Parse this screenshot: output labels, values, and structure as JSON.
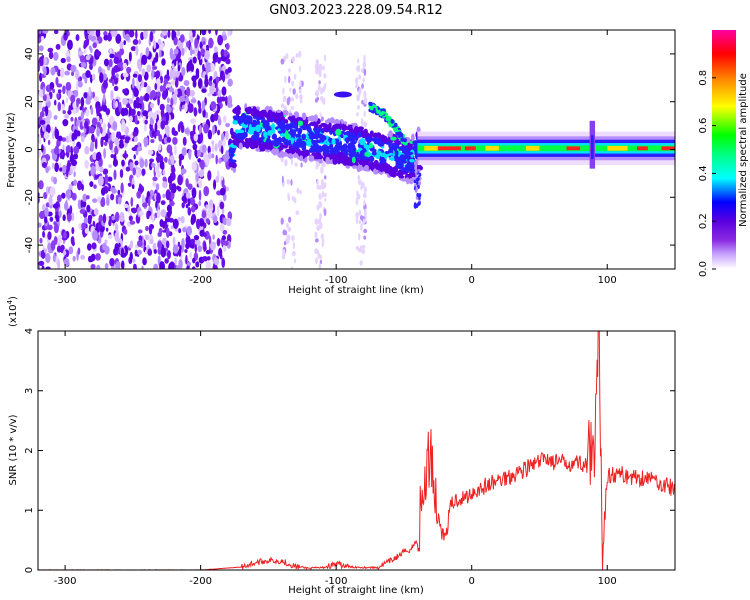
{
  "figure": {
    "title": "GN03.2023.228.09.54.R12"
  },
  "colors": {
    "snr_line": "#ee2222",
    "axis": "#000000",
    "background": "#ffffff"
  },
  "chart_data": [
    {
      "type": "heatmap",
      "title": "GN03.2023.228.09.54.R12",
      "xlabel": "Height of straight line (km)",
      "ylabel": "Frequency (Hz)",
      "xlim": [
        -320,
        150
      ],
      "ylim": [
        -50,
        50
      ],
      "xticks": [
        -300,
        -200,
        -100,
        0,
        100
      ],
      "yticks": [
        -40,
        -20,
        0,
        20,
        40
      ],
      "grid": false,
      "colorbar": {
        "label": "Normalized spectral amplitude",
        "range": [
          0,
          1
        ],
        "ticks": [
          "0.0",
          "0.2",
          "0.4",
          "0.6",
          "0.8"
        ],
        "colormap": [
          "#ffffff",
          "#c9a6ff",
          "#8a2be2",
          "#5a00e0",
          "#0000ff",
          "#00ffff",
          "#00ff80",
          "#00ff00",
          "#ffff00",
          "#ff8000",
          "#ff0000",
          "#ff00a0"
        ]
      },
      "features": {
        "noise_region_x": [
          -320,
          -178
        ],
        "main_band": [
          {
            "x": -175,
            "y": 10
          },
          {
            "x": -150,
            "y": 8
          },
          {
            "x": -125,
            "y": 5
          },
          {
            "x": -100,
            "y": 3
          },
          {
            "x": -80,
            "y": 1
          },
          {
            "x": -60,
            "y": -2
          },
          {
            "x": -45,
            "y": -5
          },
          {
            "x": -40,
            "y": 0
          },
          {
            "x": -20,
            "y": 0.5
          },
          {
            "x": 0,
            "y": 0.5
          },
          {
            "x": 50,
            "y": 0.5
          },
          {
            "x": 90,
            "y": 0
          },
          {
            "x": 150,
            "y": 0
          }
        ],
        "upper_branch": [
          {
            "x": -75,
            "y": 18
          },
          {
            "x": -65,
            "y": 15
          },
          {
            "x": -55,
            "y": 8
          },
          {
            "x": -48,
            "y": 2
          }
        ]
      }
    },
    {
      "type": "line",
      "xlabel": "Height of straight line (km)",
      "ylabel": "SNR (10 * v/v)",
      "y_multiplier": "(x10",
      "y_multiplier_exp": "4",
      "y_multiplier_close": ")",
      "xlim": [
        -320,
        150
      ],
      "ylim": [
        0,
        4
      ],
      "xticks": [
        -300,
        -200,
        -100,
        0,
        100
      ],
      "yticks": [
        0,
        1,
        2,
        3,
        4
      ],
      "grid": false,
      "series": [
        {
          "x": [
            -320,
            -250,
            -200,
            -170,
            -160,
            -150,
            -140,
            -130,
            -120,
            -110,
            -100,
            -90,
            -70,
            -60,
            -50,
            -45,
            -40,
            -35,
            -32,
            -30,
            -28,
            -25,
            -20,
            -15,
            -10,
            -5,
            0,
            10,
            20,
            30,
            40,
            50,
            55,
            60,
            70,
            80,
            85,
            90,
            92,
            94,
            96,
            100,
            110,
            120,
            130,
            140,
            150
          ],
          "values": [
            0,
            0,
            0,
            0.05,
            0.12,
            0.16,
            0.15,
            0.06,
            0.03,
            0.04,
            0.1,
            0.05,
            0.04,
            0.15,
            0.3,
            0.35,
            0.5,
            1.4,
            1.8,
            2.1,
            1.5,
            0.9,
            0.5,
            1.1,
            1.2,
            1.2,
            1.3,
            1.4,
            1.5,
            1.6,
            1.7,
            1.8,
            1.9,
            1.8,
            1.8,
            1.8,
            1.75,
            1.7,
            2.5,
            4.1,
            0.4,
            1.6,
            1.6,
            1.55,
            1.55,
            1.45,
            1.35
          ]
        }
      ]
    }
  ]
}
